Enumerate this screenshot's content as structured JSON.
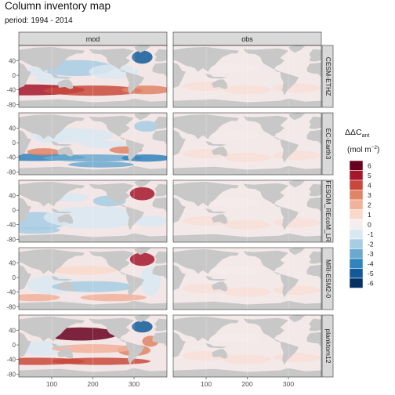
{
  "chart_data": {
    "type": "heatmap",
    "title": "Column inventory map",
    "subtitle": "period: 1994 - 2014",
    "columns": [
      "mod",
      "obs"
    ],
    "rows": [
      "CESM-ETHZ",
      "EC-Earth3",
      "FESOM_REcoM_LR",
      "MRI-ESM2-0",
      "planktom12"
    ],
    "x_ticks": [
      100,
      200,
      300
    ],
    "y_ticks": [
      40,
      0,
      -40,
      -80
    ],
    "y_tick_labels": [
      "40",
      "0",
      "-40",
      "-80"
    ],
    "legend": {
      "title_main": "ΔΔC",
      "title_sub": "ant",
      "units_prefix": "(mol m",
      "units_exp": "−2",
      "units_suffix": ")",
      "levels": [
        6,
        5,
        4,
        3,
        2,
        1,
        0,
        -1,
        -2,
        -3,
        -4,
        -5,
        -6
      ],
      "level_labels": [
        "6",
        "5",
        "4",
        "3",
        "2",
        "1",
        "0",
        "-1",
        "-2",
        "-3",
        "-4",
        "-5",
        "-6"
      ],
      "colors": [
        "#67001f",
        "#a5172b",
        "#c8493b",
        "#e08467",
        "#f1b29a",
        "#f9d9cb",
        "#f5eeee",
        "#d9e7f1",
        "#a7cde3",
        "#6ba9cf",
        "#3083bc",
        "#115a9a",
        "#053061"
      ]
    },
    "land_color": "#c8c8c8",
    "strip_color": "#d9d9d9"
  }
}
